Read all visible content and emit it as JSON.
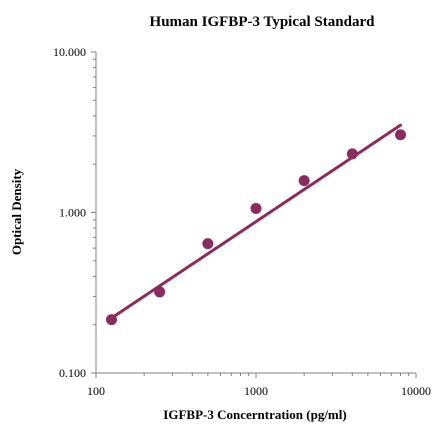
{
  "chart_data": {
    "type": "scatter",
    "title": "Human IGFBP-3 Typical Standard",
    "xlabel": "IGFBP-3 Concerntration (pg/ml)",
    "ylabel": "Optical Density",
    "x_scale": "log",
    "y_scale": "log",
    "xlim": [
      100,
      10000
    ],
    "ylim": [
      0.1,
      10
    ],
    "x_ticks": [
      {
        "value": 100,
        "label": "100"
      },
      {
        "value": 1000,
        "label": "1000"
      },
      {
        "value": 10000,
        "label": "10000"
      }
    ],
    "y_ticks": [
      {
        "value": 0.1,
        "label": "0.100"
      },
      {
        "value": 1,
        "label": "1.000"
      },
      {
        "value": 10,
        "label": "10.000"
      }
    ],
    "grid": false,
    "legend": "none",
    "series": [
      {
        "points": [
          {
            "x": 125,
            "y": 0.215
          },
          {
            "x": 250,
            "y": 0.32
          },
          {
            "x": 500,
            "y": 0.64
          },
          {
            "x": 1000,
            "y": 1.06
          },
          {
            "x": 2000,
            "y": 1.58
          },
          {
            "x": 4000,
            "y": 2.32
          },
          {
            "x": 8000,
            "y": 3.05
          }
        ],
        "color": "#8b2d5c"
      }
    ],
    "trendline": {
      "type": "power",
      "from": {
        "x": 125,
        "y": 0.22
      },
      "to": {
        "x": 8000,
        "y": 3.5
      },
      "color": "#8b2d5c"
    }
  }
}
